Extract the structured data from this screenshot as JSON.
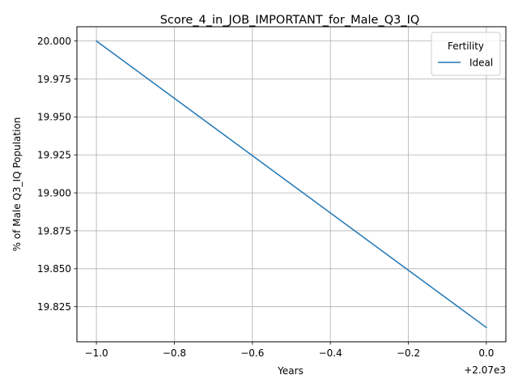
{
  "chart_data": {
    "type": "line",
    "title": "Score_4_in_JOB_IMPORTANT_for_Male_Q3_IQ",
    "xlabel": "Years",
    "ylabel": "% of Male Q3_IQ Population",
    "x_offset_label": "+2.07e3",
    "xlim": [
      -1.05,
      0.05
    ],
    "ylim": [
      19.8019,
      20.0094
    ],
    "x_ticks": [
      -1.0,
      -0.8,
      -0.6,
      -0.4,
      -0.2,
      0.0
    ],
    "x_tick_labels": [
      "−1.0",
      "−0.8",
      "−0.6",
      "−0.4",
      "−0.2",
      "0.0"
    ],
    "y_ticks": [
      19.825,
      19.85,
      19.875,
      19.9,
      19.925,
      19.95,
      19.975,
      20.0
    ],
    "y_tick_labels": [
      "19.825",
      "19.850",
      "19.875",
      "19.900",
      "19.925",
      "19.950",
      "19.975",
      "20.000"
    ],
    "grid": true,
    "legend": {
      "title": "Fertility",
      "placement": "top-right"
    },
    "series": [
      {
        "name": "Ideal",
        "color": "#1f77b4",
        "x": [
          -1.0,
          0.0
        ],
        "y": [
          20.0,
          19.8113
        ]
      }
    ]
  }
}
